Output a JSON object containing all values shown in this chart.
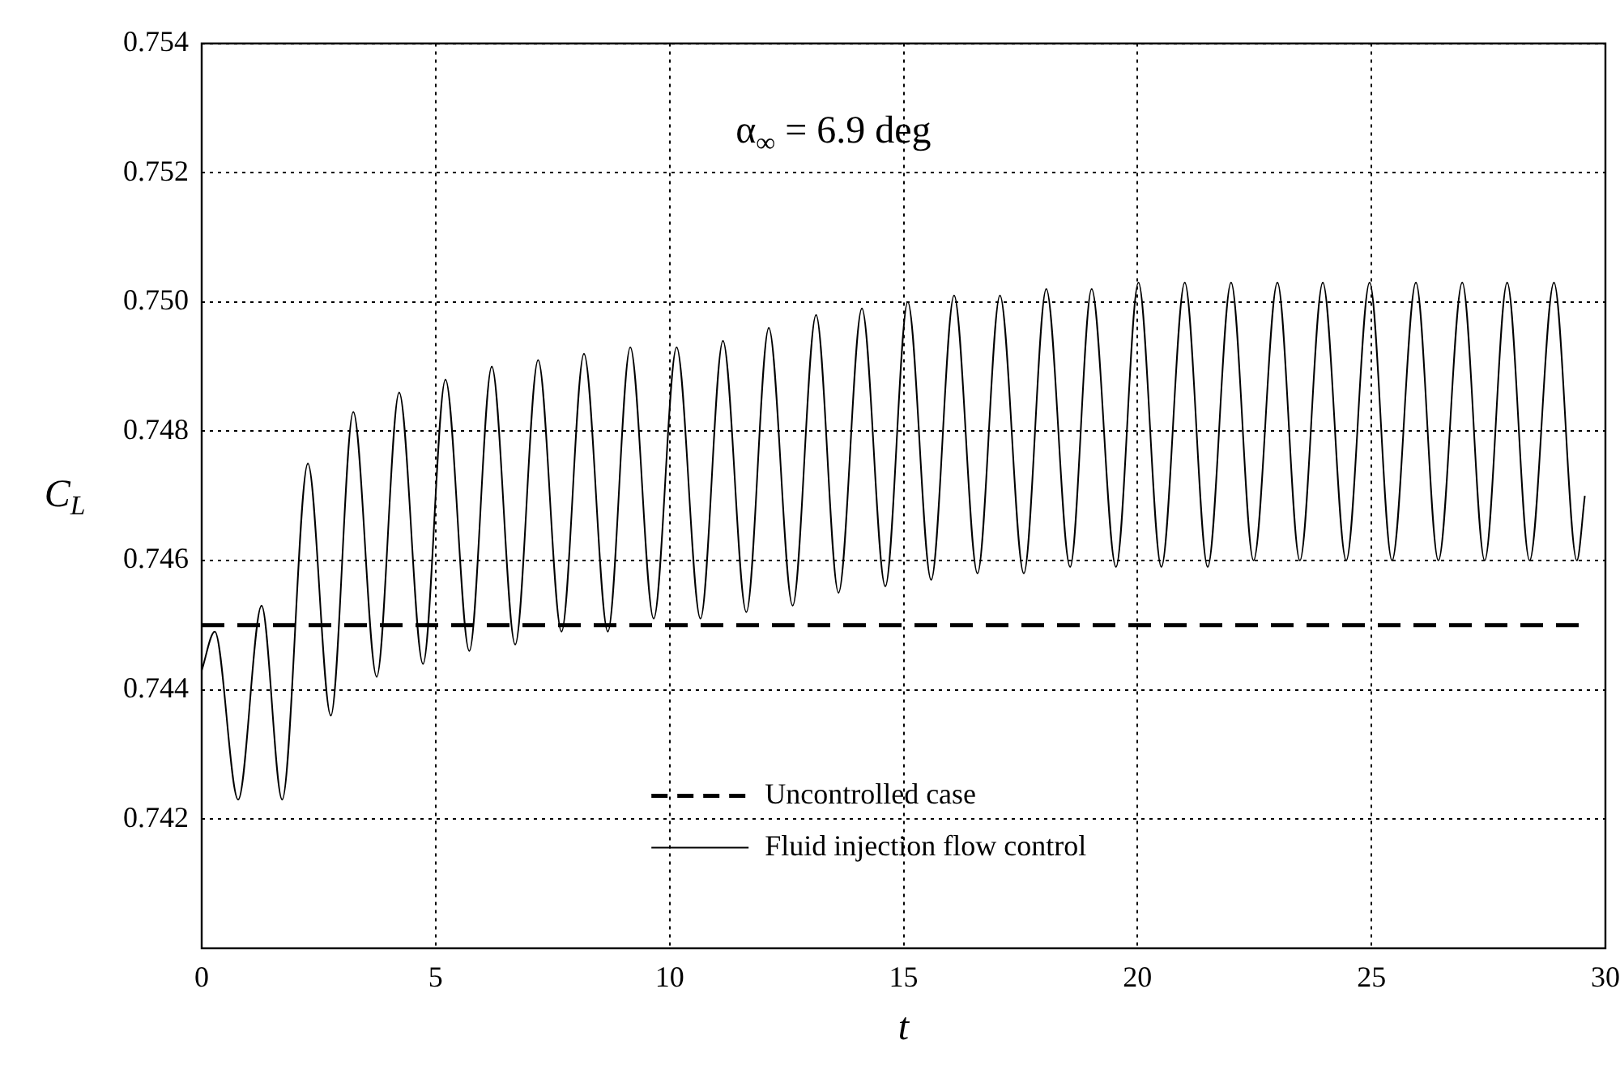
{
  "chart_data": {
    "type": "line",
    "xlabel": "t",
    "ylabel": "C$_{L}$",
    "annotations": [
      "α$_{∞}$ = 6.9 deg"
    ],
    "xlim": [
      0,
      30
    ],
    "xticks": [
      0,
      5,
      10,
      15,
      20,
      25,
      30
    ],
    "ylim": [
      0.74,
      0.754
    ],
    "yticks": [
      0.742,
      0.744,
      0.746,
      0.748,
      {
        "value": 0.75,
        "label": "0.750"
      },
      0.752,
      0.754
    ],
    "grid": true,
    "legend": "bottom",
    "marker": "none",
    "series": [
      {
        "name": "Uncontrolled case",
        "color": "#000000",
        "line_style": "dashed",
        "x": [
          0,
          29.5
        ],
        "values": [
          0.745,
          0.745
        ]
      },
      {
        "name": "Fluid injection flow control",
        "color": "#000000",
        "line_style": "solid",
        "x": [
          0,
          0.28,
          0.78,
          1.28,
          1.72,
          2.27,
          2.76,
          3.24,
          3.74,
          4.22,
          4.73,
          5.21,
          5.72,
          6.2,
          6.7,
          7.19,
          7.69,
          8.17,
          8.68,
          9.16,
          9.66,
          10.15,
          10.66,
          11.14,
          11.64,
          12.12,
          12.63,
          13.13,
          13.61,
          14.11,
          14.61,
          15.09,
          15.59,
          16.08,
          16.58,
          17.06,
          17.57,
          18.05,
          18.56,
          19.02,
          19.54,
          20.02,
          20.51,
          21.01,
          21.5,
          22,
          22.48,
          22.99,
          23.47,
          23.96,
          24.46,
          24.96,
          25.44,
          25.95,
          26.43,
          26.94,
          27.42,
          27.9,
          28.38,
          28.9,
          29.39,
          29.56
        ],
        "values": [
          0.7443,
          0.7449,
          0.7423,
          0.7453,
          0.7423,
          0.7475,
          0.7436,
          0.7483,
          0.7442,
          0.7486,
          0.7444,
          0.7488,
          0.7446,
          0.749,
          0.7447,
          0.7491,
          0.7449,
          0.7492,
          0.7449,
          0.7493,
          0.7451,
          0.7493,
          0.7451,
          0.7494,
          0.7452,
          0.7496,
          0.7453,
          0.7498,
          0.7455,
          0.7499,
          0.7456,
          0.75,
          0.7457,
          0.7501,
          0.7458,
          0.7501,
          0.7458,
          0.7502,
          0.7459,
          0.7502,
          0.7459,
          0.7503,
          0.7459,
          0.7503,
          0.7459,
          0.7503,
          0.746,
          0.7503,
          0.746,
          0.7503,
          0.746,
          0.7503,
          0.746,
          0.7503,
          0.746,
          0.7503,
          0.746,
          0.7503,
          0.746,
          0.7503,
          0.746,
          0.747
        ]
      }
    ]
  }
}
